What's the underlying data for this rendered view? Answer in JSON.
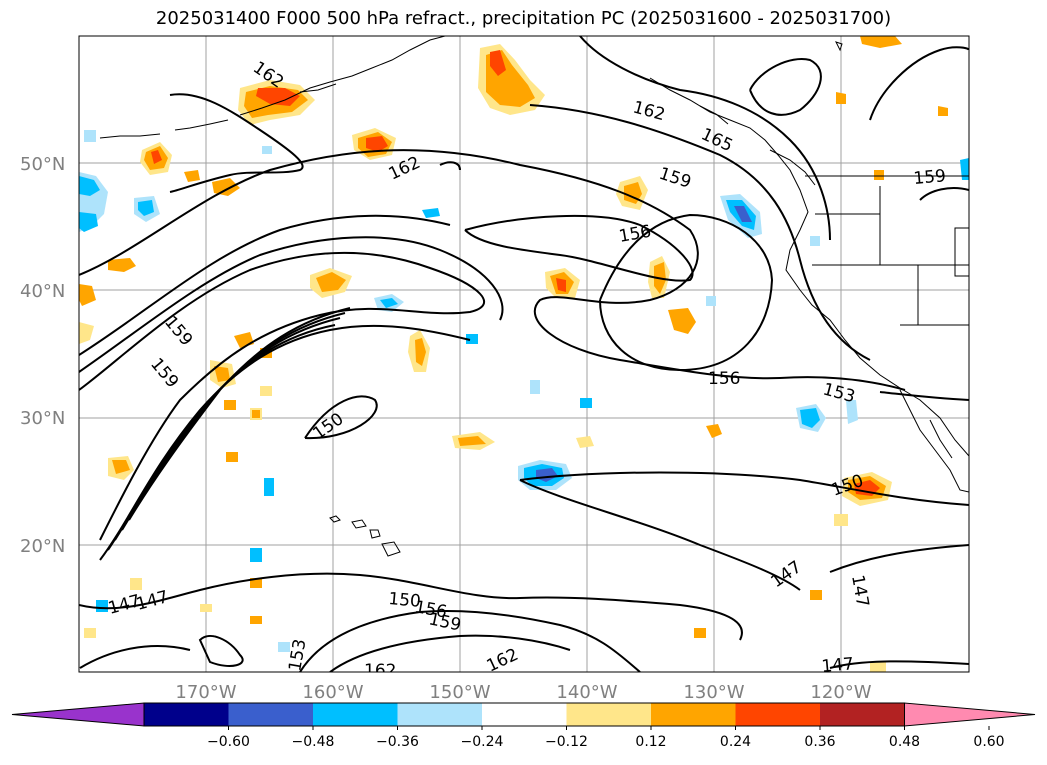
{
  "title": "2025031400 F000 500 hPa refract., precipitation PC (2025031600 - 2025031700)",
  "lat_labels": [
    "50°N",
    "40°N",
    "30°N",
    "20°N"
  ],
  "lon_labels": [
    "170°W",
    "160°W",
    "150°W",
    "140°W",
    "130°W",
    "120°W"
  ],
  "contour_labels": [
    "162",
    "162",
    "162",
    "165",
    "159",
    "159",
    "156",
    "159",
    "159",
    "156",
    "153",
    "150",
    "150",
    "147",
    "147",
    "147",
    "147",
    "150",
    "156",
    "159",
    "162",
    "162",
    "153",
    "147"
  ],
  "colorbar": {
    "ticks": [
      "−0.60",
      "−0.48",
      "−0.36",
      "−0.24",
      "−0.12",
      "0.12",
      "0.24",
      "0.36",
      "0.48",
      "0.60"
    ],
    "colors": [
      "#9933cc",
      "#00008b",
      "#3a5fcd",
      "#00bfff",
      "#aee3fb",
      "#ffffff",
      "#ffe68a",
      "#ffa500",
      "#ff4500",
      "#b22222",
      "#ff8ab0"
    ]
  },
  "colors": {
    "land_outline": "#000000",
    "grid": "#a0a0a0",
    "contour": "#000000"
  }
}
